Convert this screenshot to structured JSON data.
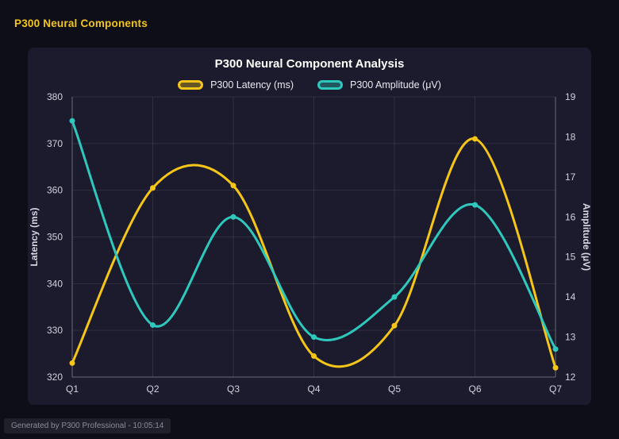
{
  "page": {
    "title": "P300 Neural Components",
    "footer": "Generated by P300 Professional - 10:05:14"
  },
  "colors": {
    "background": "#0e0e18",
    "panel": "#1b1b2d",
    "grid": "rgba(255,255,255,0.09)",
    "axis_border": "rgba(255,255,255,0.28)",
    "tick_text": "#cfd3dd",
    "title_text": "#ffffff",
    "accent_yellow": "#f5c518",
    "accent_teal": "#2ec8bc"
  },
  "chart_data": {
    "type": "line",
    "title": "P300 Neural Component Analysis",
    "categories": [
      "Q1",
      "Q2",
      "Q3",
      "Q4",
      "Q5",
      "Q6",
      "Q7"
    ],
    "series": [
      {
        "name": "P300 Latency (ms)",
        "axis": "left",
        "color": "#f5c518",
        "values": [
          323,
          360.5,
          361,
          324.5,
          331,
          371,
          322
        ]
      },
      {
        "name": "P300 Amplitude (μV)",
        "axis": "right",
        "color": "#2ec8bc",
        "values": [
          18.4,
          13.3,
          16.0,
          13.0,
          14.0,
          16.3,
          12.7
        ]
      }
    ],
    "left_axis": {
      "label": "Latency (ms)",
      "min": 320,
      "max": 380,
      "step": 10
    },
    "right_axis": {
      "label": "Amplitude (μV)",
      "min": 12,
      "max": 19,
      "step": 1
    },
    "grid": true,
    "legend_position": "top",
    "smoothing": true
  }
}
